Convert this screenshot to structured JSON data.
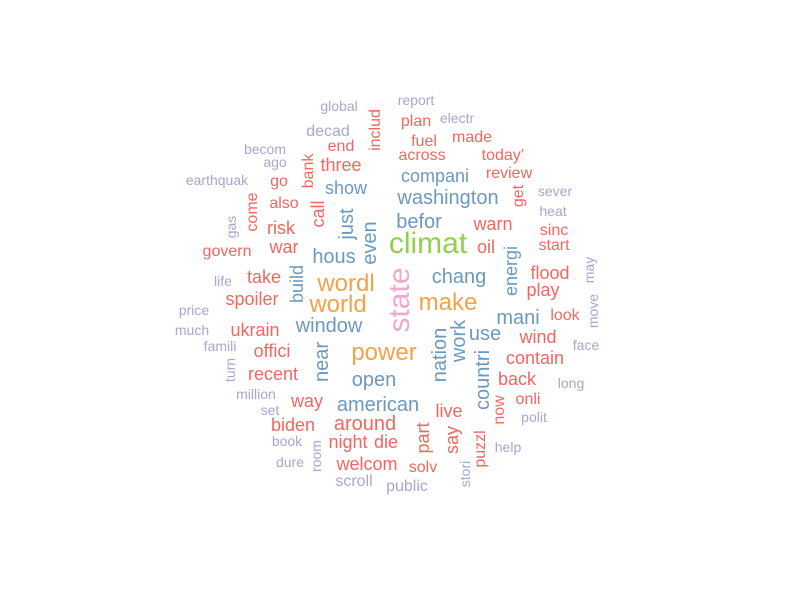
{
  "colors": {
    "purple": "#a9a6cf",
    "red": "#f2675f",
    "blue": "#6b99bf",
    "orange": "#f4a24a",
    "green": "#93cf4f",
    "pink": "#f2a8c8"
  },
  "words": {
    "global": "global",
    "report": "report",
    "electr": "electr",
    "includ": "includ",
    "plan": "plan",
    "decad": "decad",
    "fuel": "fuel",
    "made": "made",
    "becom": "becom",
    "end": "end",
    "across": "across",
    "today": "today’",
    "ago": "ago",
    "bank": "bank",
    "three": "three",
    "review": "review",
    "earthquak": "earthquak",
    "go": "go",
    "show": "show",
    "compani": "compani",
    "get": "get",
    "sever": "sever",
    "also": "also",
    "call": "call",
    "washington": "washington",
    "heat": "heat",
    "gas": "gas",
    "come": "come",
    "risk": "risk",
    "just": "just",
    "befor": "befor",
    "warn": "warn",
    "sinc": "sinc",
    "govern": "govern",
    "war": "war",
    "even": "even",
    "climat": "climat",
    "oil": "oil",
    "start": "start",
    "hous": "hous",
    "energi": "energi",
    "may": "may",
    "life": "life",
    "take": "take",
    "build": "build",
    "wordl": "wordl",
    "state": "state",
    "chang": "chang",
    "flood": "flood",
    "play": "play",
    "price": "price",
    "spoiler": "spoiler",
    "world": "world",
    "make": "make",
    "move": "move",
    "much": "much",
    "window": "window",
    "nation": "nation",
    "use": "use",
    "mani": "mani",
    "look": "look",
    "ukrain": "ukrain",
    "work": "work",
    "wind": "wind",
    "famili": "famili",
    "offici": "offici",
    "near": "near",
    "power": "power",
    "face": "face",
    "turn": "turn",
    "contain": "contain",
    "recent": "recent",
    "open": "open",
    "countri": "countri",
    "back": "back",
    "long": "long",
    "million": "million",
    "way": "way",
    "american": "american",
    "onli": "onli",
    "set": "set",
    "live": "live",
    "now": "now",
    "polit": "polit",
    "biden": "biden",
    "around": "around",
    "part": "part",
    "book": "book",
    "night": "night",
    "die": "die",
    "say": "say",
    "puzzl": "puzzl",
    "help": "help",
    "dure": "dure",
    "room": "room",
    "welcom": "welcom",
    "solv": "solv",
    "stori": "stori",
    "scroll": "scroll",
    "public": "public"
  }
}
